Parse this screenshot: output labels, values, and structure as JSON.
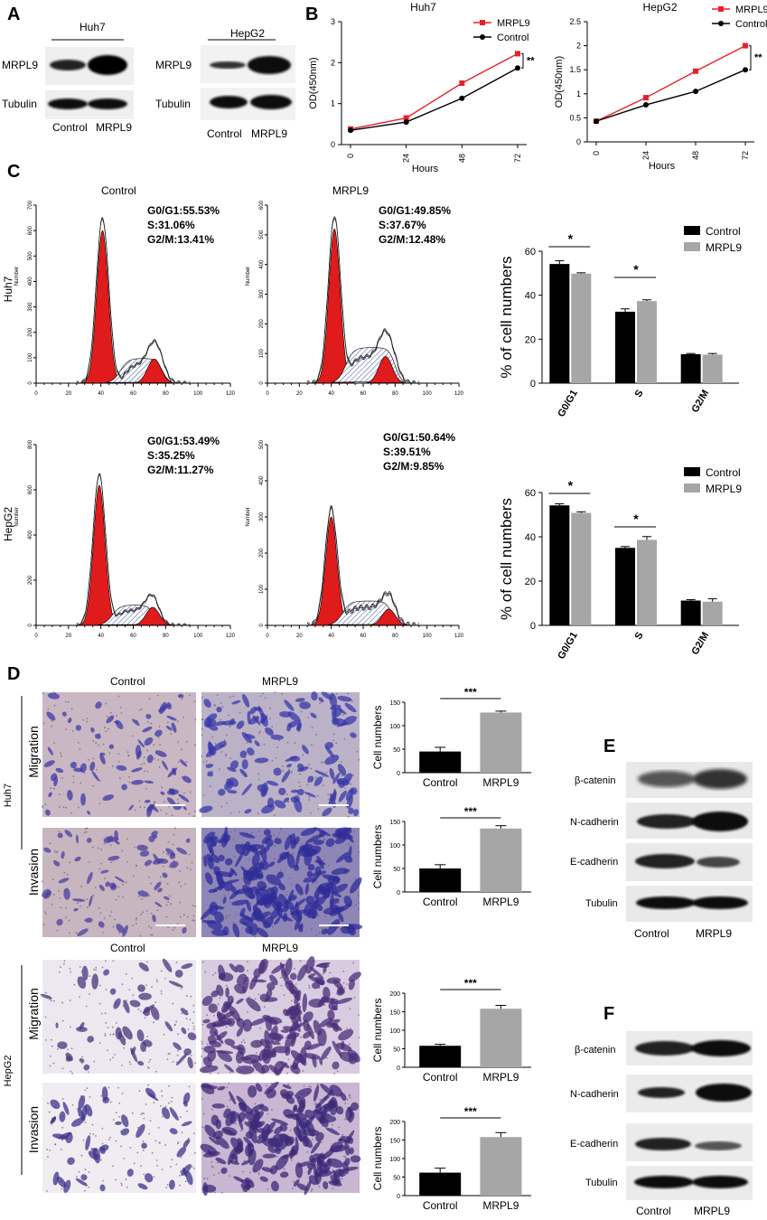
{
  "panel_labels": [
    "A",
    "B",
    "C",
    "D",
    "E",
    "F"
  ],
  "panel_a": {
    "blots": [
      {
        "cell_line": "Huh7",
        "rows": [
          "MRPL9",
          "Tubulin"
        ],
        "lanes": [
          "Control",
          "MRPL9"
        ]
      },
      {
        "cell_line": "HepG2",
        "rows": [
          "MRPL9",
          "Tubulin"
        ],
        "lanes": [
          "Control",
          "MRPL9"
        ]
      }
    ]
  },
  "panel_c": {
    "row_labels": [
      "Huh7",
      "HepG2"
    ],
    "histogram_ylabel": "Number",
    "col_titles": [
      "Control",
      "MRPL9"
    ],
    "stats": [
      [
        "G0/G1:55.53%",
        "S:31.06%",
        "G2/M:13.41%"
      ],
      [
        "G0/G1:49.85%",
        "S:37.67%",
        "G2/M:12.48%"
      ],
      [
        "G0/G1:53.49%",
        "S:35.25%",
        "G2/M:11.27%"
      ],
      [
        "G0/G1:50.64%",
        "S:39.51%",
        "G2/M:9.85%"
      ]
    ]
  },
  "panel_d": {
    "col_titles": [
      "Control",
      "MRPL9"
    ],
    "cell_lines": [
      "Huh7",
      "HepG2"
    ],
    "assays": [
      "Migration",
      "Invasion"
    ]
  },
  "panel_e": {
    "rows": [
      "β-catenin",
      "N-cadherin",
      "E-cadherin",
      "Tubulin"
    ],
    "lanes": [
      "Control",
      "MRPL9"
    ]
  },
  "panel_f": {
    "rows": [
      "β-catenin",
      "N-cadherin",
      "E-cadherin",
      "Tubulin"
    ],
    "lanes": [
      "Control",
      "MRPL9"
    ]
  },
  "colors": {
    "control": "#000000",
    "mrpl9": "#e8202a",
    "mrpl9_bar": "#a6a6a6",
    "histo_red": "#e01b1b",
    "stain": "#4a3a9a"
  },
  "chart_data": [
    {
      "id": "B-huh7",
      "type": "line",
      "title": "Huh7",
      "xlabel": "Hours",
      "ylabel": "OD(450nm)",
      "x": [
        0,
        24,
        48,
        72
      ],
      "ylim": [
        0,
        3
      ],
      "yticks": [
        0,
        1,
        2,
        3
      ],
      "legend": "top-right",
      "significance": "**",
      "series": [
        {
          "name": "MRPL9",
          "color": "#e8202a",
          "marker": "square",
          "values": [
            0.38,
            0.65,
            1.5,
            2.22
          ]
        },
        {
          "name": "Control",
          "color": "#000000",
          "marker": "circle",
          "values": [
            0.35,
            0.55,
            1.13,
            1.87
          ]
        }
      ]
    },
    {
      "id": "B-hepg2",
      "type": "line",
      "title": "HepG2",
      "xlabel": "Hours",
      "ylabel": "OD(450nm)",
      "x": [
        0,
        24,
        48,
        72
      ],
      "ylim": [
        0,
        2.5
      ],
      "yticks": [
        0,
        0.5,
        1.0,
        1.5,
        2.0,
        2.5
      ],
      "legend": "top-right",
      "significance": "**",
      "series": [
        {
          "name": "MRPL9",
          "color": "#e8202a",
          "marker": "square",
          "values": [
            0.43,
            0.92,
            1.47,
            2.0
          ]
        },
        {
          "name": "Control",
          "color": "#000000",
          "marker": "circle",
          "values": [
            0.43,
            0.77,
            1.05,
            1.5
          ]
        }
      ]
    },
    {
      "id": "C-huh7-bar",
      "type": "bar",
      "ylabel": "% of cell numbers",
      "categories": [
        "G0/G1",
        "S",
        "G2/M"
      ],
      "ylim": [
        0,
        60
      ],
      "yticks": [
        0,
        20,
        40,
        60
      ],
      "legend": "top-right",
      "significance": [
        "*",
        "*",
        ""
      ],
      "series": [
        {
          "name": "Control",
          "color": "#000000",
          "values": [
            54.2,
            32.5,
            13.2
          ],
          "errors": [
            1.5,
            1.3,
            0.3
          ]
        },
        {
          "name": "MRPL9",
          "color": "#a6a6a6",
          "values": [
            49.8,
            37.3,
            13.0
          ],
          "errors": [
            0.4,
            0.6,
            0.5
          ]
        }
      ]
    },
    {
      "id": "C-hepg2-bar",
      "type": "bar",
      "ylabel": "% of cell numbers",
      "categories": [
        "G0/G1",
        "S",
        "G2/M"
      ],
      "ylim": [
        0,
        60
      ],
      "yticks": [
        0,
        20,
        40,
        60
      ],
      "legend": "top-right",
      "significance": [
        "*",
        "*",
        ""
      ],
      "series": [
        {
          "name": "Control",
          "color": "#000000",
          "values": [
            54.2,
            35.0,
            11.2
          ],
          "errors": [
            0.7,
            0.6,
            0.4
          ]
        },
        {
          "name": "MRPL9",
          "color": "#a6a6a6",
          "values": [
            50.8,
            38.6,
            10.7
          ],
          "errors": [
            0.5,
            1.5,
            1.3
          ]
        }
      ]
    },
    {
      "id": "D-huh7-migration",
      "type": "bar",
      "ylabel": "Cell numbers",
      "categories": [
        "Control",
        "MRPL9"
      ],
      "ylim": [
        0,
        150
      ],
      "yticks": [
        0,
        50,
        100,
        150
      ],
      "significance": "***",
      "series": [
        {
          "values": [
            45,
            128
          ],
          "errors": [
            9,
            3
          ],
          "colors": [
            "#000000",
            "#a6a6a6"
          ]
        }
      ]
    },
    {
      "id": "D-huh7-invasion",
      "type": "bar",
      "ylabel": "Cell numbers",
      "categories": [
        "Control",
        "MRPL9"
      ],
      "ylim": [
        0,
        150
      ],
      "yticks": [
        0,
        50,
        100,
        150
      ],
      "significance": "***",
      "series": [
        {
          "values": [
            50,
            135
          ],
          "errors": [
            8,
            6
          ],
          "colors": [
            "#000000",
            "#a6a6a6"
          ]
        }
      ]
    },
    {
      "id": "D-hepg2-migration",
      "type": "bar",
      "ylabel": "Cell numbers",
      "categories": [
        "Control",
        "MRPL9"
      ],
      "ylim": [
        0,
        200
      ],
      "yticks": [
        0,
        50,
        100,
        150,
        200
      ],
      "significance": "***",
      "series": [
        {
          "values": [
            58,
            158
          ],
          "errors": [
            4,
            9
          ],
          "colors": [
            "#000000",
            "#a6a6a6"
          ]
        }
      ]
    },
    {
      "id": "D-hepg2-invasion",
      "type": "bar",
      "ylabel": "Cell numbers",
      "categories": [
        "Control",
        "MRPL9"
      ],
      "ylim": [
        0,
        200
      ],
      "yticks": [
        0,
        50,
        100,
        150,
        200
      ],
      "significance": "***",
      "series": [
        {
          "values": [
            62,
            158
          ],
          "errors": [
            12,
            12
          ],
          "colors": [
            "#000000",
            "#a6a6a6"
          ]
        }
      ]
    },
    {
      "id": "C-hist-huh7-control",
      "type": "area",
      "xlim": [
        0,
        120
      ],
      "ylim": [
        0,
        700
      ],
      "xticks": [
        0,
        20,
        40,
        60,
        80,
        100,
        120
      ],
      "yticks": [
        0,
        100,
        200,
        300,
        400,
        500,
        600,
        700
      ],
      "peaks": {
        "g1": {
          "x": 41,
          "y": 600
        },
        "g2": {
          "x": 73,
          "y": 95
        },
        "s_plateau": {
          "from": 55,
          "to": 80,
          "y": 130
        }
      }
    },
    {
      "id": "C-hist-huh7-mrpl9",
      "type": "area",
      "xlim": [
        0,
        120
      ],
      "ylim": [
        0,
        600
      ],
      "xticks": [
        0,
        20,
        40,
        60,
        80,
        100,
        120
      ],
      "yticks": [
        0,
        100,
        200,
        300,
        400,
        500,
        600
      ],
      "peaks": {
        "g1": {
          "x": 42,
          "y": 520
        },
        "g2": {
          "x": 74,
          "y": 90
        },
        "s_plateau": {
          "from": 52,
          "to": 82,
          "y": 160
        }
      }
    },
    {
      "id": "C-hist-hepg2-control",
      "type": "area",
      "xlim": [
        0,
        120
      ],
      "ylim": [
        0,
        800
      ],
      "xticks": [
        0,
        20,
        40,
        60,
        80,
        100,
        120
      ],
      "yticks": [
        0,
        200,
        400,
        600,
        800
      ],
      "peaks": {
        "g1": {
          "x": 39,
          "y": 620
        },
        "g2": {
          "x": 72,
          "y": 80
        },
        "s_plateau": {
          "from": 50,
          "to": 75,
          "y": 120
        }
      }
    },
    {
      "id": "C-hist-hepg2-mrpl9",
      "type": "area",
      "xlim": [
        0,
        120
      ],
      "ylim": [
        0,
        500
      ],
      "xticks": [
        0,
        20,
        40,
        60,
        80,
        100,
        120
      ],
      "yticks": [
        0,
        100,
        200,
        300,
        400,
        500
      ],
      "peaks": {
        "g1": {
          "x": 40,
          "y": 300
        },
        "g2": {
          "x": 76,
          "y": 45
        },
        "s_plateau": {
          "from": 50,
          "to": 80,
          "y": 90
        }
      }
    }
  ]
}
